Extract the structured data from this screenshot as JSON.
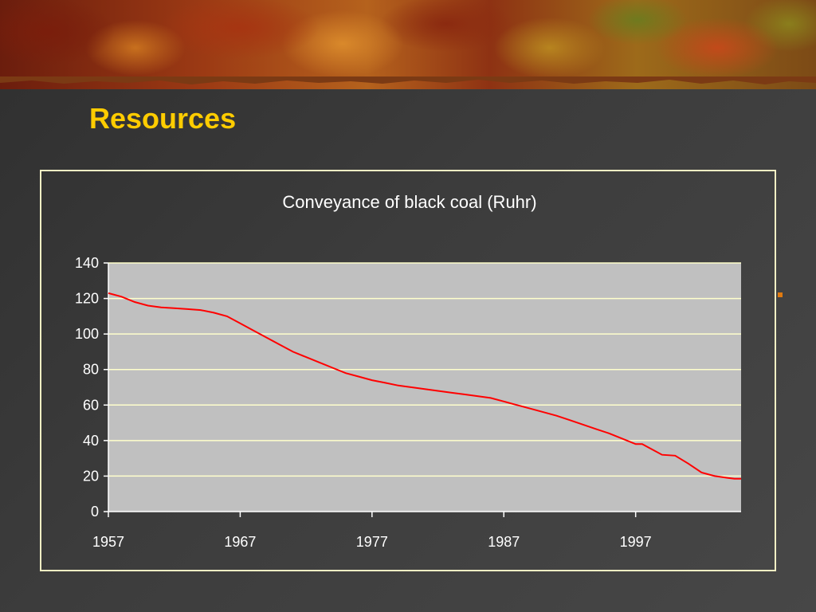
{
  "slide": {
    "title": "Resources",
    "colors": {
      "title": "#ffcc00",
      "background": "#3f3f3f",
      "frame": "#f3efc4",
      "accent": "#e07a10"
    }
  },
  "chart_data": {
    "type": "line",
    "title": "Conveyance of black coal (Ruhr)",
    "xlabel": "",
    "ylabel": "",
    "xlim": [
      1957,
      2005
    ],
    "ylim": [
      0,
      140
    ],
    "x_ticks": [
      1957,
      1967,
      1977,
      1987,
      1997
    ],
    "y_ticks": [
      0,
      20,
      40,
      60,
      80,
      100,
      120,
      140
    ],
    "grid": true,
    "legend": "none",
    "colors": {
      "line": "#ff0000",
      "plot_bg": "#c0c0c0",
      "grid": "#ffffcc",
      "axis": "#ffffff"
    },
    "series": [
      {
        "values": [
          [
            1957,
            123
          ],
          [
            1958,
            121
          ],
          [
            1959,
            118
          ],
          [
            1960,
            116
          ],
          [
            1961,
            115
          ],
          [
            1962,
            114.5
          ],
          [
            1963,
            114
          ],
          [
            1964,
            113.5
          ],
          [
            1965,
            112
          ],
          [
            1966,
            110
          ],
          [
            1967,
            106
          ],
          [
            1968,
            102
          ],
          [
            1969,
            98
          ],
          [
            1970,
            94
          ],
          [
            1971,
            90
          ],
          [
            1972,
            87
          ],
          [
            1973,
            84
          ],
          [
            1974,
            81
          ],
          [
            1975,
            78
          ],
          [
            1976,
            76
          ],
          [
            1977,
            74
          ],
          [
            1978,
            72.5
          ],
          [
            1979,
            71
          ],
          [
            1980,
            70
          ],
          [
            1981,
            69
          ],
          [
            1982,
            68
          ],
          [
            1983,
            67
          ],
          [
            1984,
            66
          ],
          [
            1985,
            65
          ],
          [
            1986,
            64
          ],
          [
            1987,
            62
          ],
          [
            1988,
            60
          ],
          [
            1989,
            58
          ],
          [
            1990,
            56
          ],
          [
            1991,
            54
          ],
          [
            1992,
            51.5
          ],
          [
            1993,
            49
          ],
          [
            1994,
            46.5
          ],
          [
            1995,
            44
          ],
          [
            1996,
            41
          ],
          [
            1997,
            38
          ],
          [
            1997.5,
            38
          ],
          [
            1998,
            36
          ],
          [
            1999,
            32
          ],
          [
            2000,
            31.5
          ],
          [
            2001,
            27
          ],
          [
            2002,
            22
          ],
          [
            2003,
            20
          ],
          [
            2004,
            19
          ],
          [
            2004.5,
            18.5
          ],
          [
            2005,
            18.5
          ]
        ]
      }
    ]
  }
}
